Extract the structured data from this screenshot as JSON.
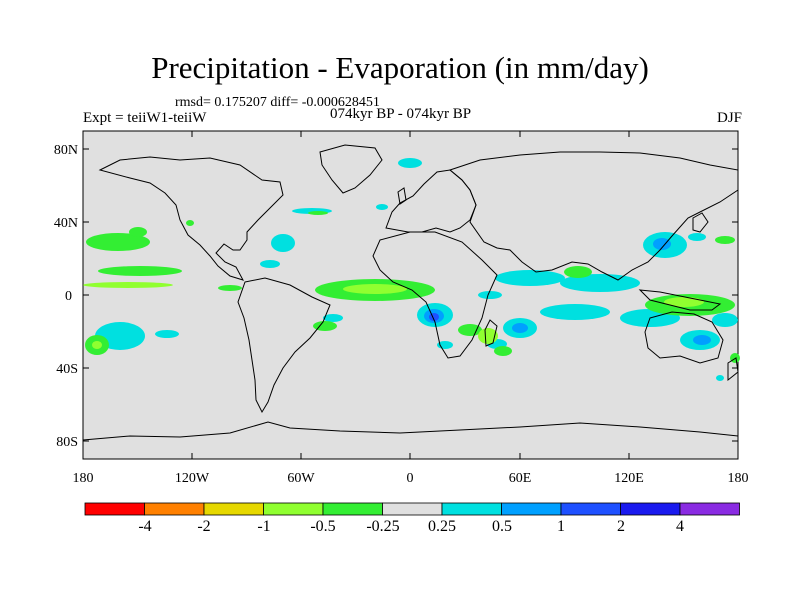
{
  "title": "Precipitation - Evaporation (in mm/day)",
  "stats_line": "rmsd= 0.175207  diff= -0.000628451",
  "period": "074kyr BP - 074kyr BP",
  "experiment": "Expt = teiiW1-teiiW",
  "season": "DJF",
  "lat_ticks": [
    "80N",
    "40N",
    "0",
    "40S",
    "80S"
  ],
  "lon_ticks": [
    "180",
    "120W",
    "60W",
    "0",
    "60E",
    "120E",
    "180"
  ],
  "colorbar": {
    "colors": [
      "#ff0000",
      "#ff8000",
      "#e6d800",
      "#90ff30",
      "#33ee33",
      "#e0e0e0",
      "#00e0e0",
      "#00a0ff",
      "#1e50ff",
      "#1a1aee",
      "#8a2be2"
    ],
    "labels": [
      "-4",
      "-2",
      "-1",
      "-0.5",
      "-0.25",
      "0.25",
      "0.5",
      "1",
      "2",
      "4"
    ]
  },
  "colors": {
    "ocean": "#e0e0e0",
    "neg_light": "#33ee33",
    "neg_mid": "#90ff30",
    "pos_light": "#00e0e0",
    "pos_mid": "#00a0ff",
    "pos_strong": "#1e50ff"
  }
}
